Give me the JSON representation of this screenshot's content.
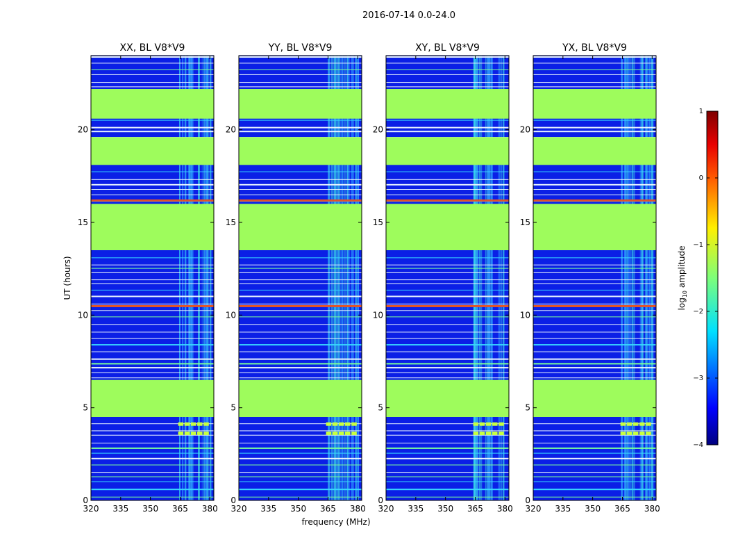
{
  "figure_title": "2016-07-14 0.0-24.0",
  "chart_data": {
    "type": "heatmap",
    "title": "2016-07-14 0.0-24.0",
    "xlabel": "frequency (MHz)",
    "ylabel": "UT (hours)",
    "xlim": [
      320,
      382
    ],
    "ylim": [
      0,
      24
    ],
    "xticks": [
      320,
      335,
      350,
      365,
      380
    ],
    "yticks": [
      0,
      5,
      10,
      15,
      20
    ],
    "panels": [
      {
        "title": "XX, BL V8*V9"
      },
      {
        "title": "YY, BL V8*V9"
      },
      {
        "title": "XY, BL V8*V9"
      },
      {
        "title": "YX, BL V8*V9"
      }
    ],
    "colorbar": {
      "label": "log10 amplitude",
      "colormap": "jet",
      "range": [
        -4,
        1
      ],
      "ticks": [
        1,
        0,
        -1,
        -2,
        -3,
        -4
      ]
    },
    "flagged_bands_hours": [
      [
        4.5,
        6.5
      ],
      [
        13.5,
        16.0
      ],
      [
        18.1,
        19.6
      ],
      [
        20.6,
        22.2
      ]
    ],
    "rfi_band_mhz": [
      364,
      380
    ],
    "strong_lines_hours": [
      10.5,
      16.2
    ]
  },
  "colors": {
    "flagged": "#9efc5c",
    "background_low": "#0b1fe6",
    "rfi": "#3af0d4",
    "strong": "#e0552a"
  }
}
